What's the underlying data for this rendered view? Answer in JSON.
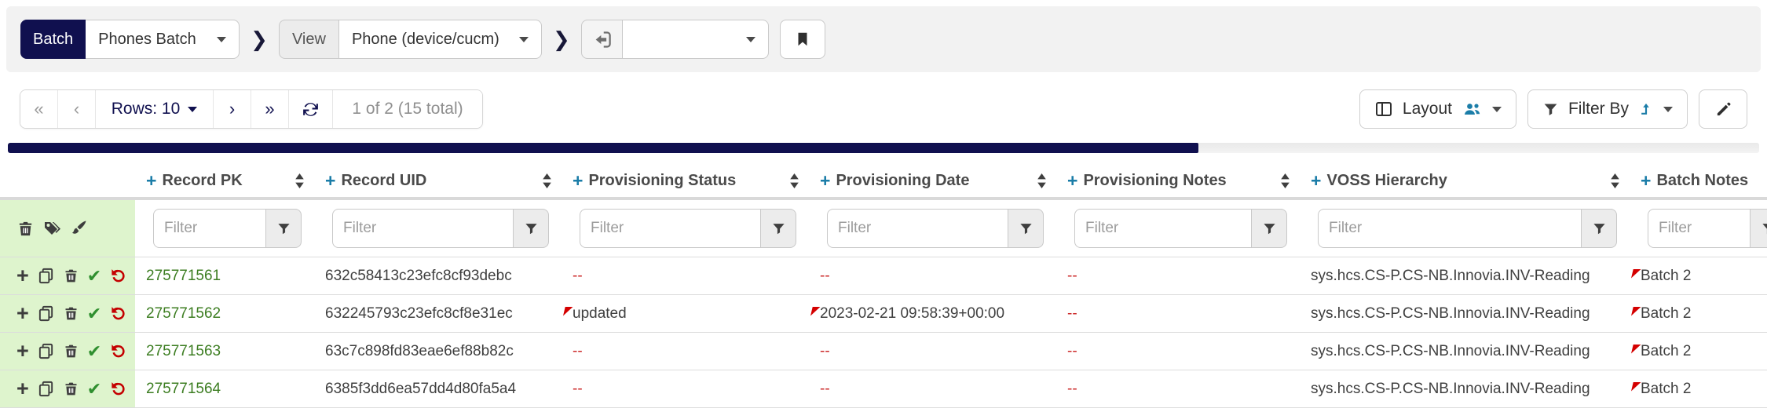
{
  "breadcrumb": {
    "batch_label": "Batch",
    "batch_value": "Phones Batch",
    "view_label": "View",
    "view_value": "Phone (device/cucm)",
    "quick_nav_value": ""
  },
  "icons": {
    "separator": "❯",
    "first": "«",
    "previous": "‹",
    "next": "›",
    "last": "»",
    "plus": "+",
    "check": "✔"
  },
  "toolbar": {
    "rows_label": "Rows: 10",
    "page_status": "1 of 2 (15 total)",
    "layout_label": "Layout",
    "filter_by_label": "Filter By"
  },
  "progress": {
    "percent": 68
  },
  "colors": {
    "navy": "#10104f",
    "teal": "#1b7da8",
    "record_pk_green": "#3c7d21",
    "empty_value_red": "#cc2b2b",
    "changed_flag_red": "#d40000",
    "action_cell_green": "#def4cd"
  },
  "table": {
    "filter_placeholder": "Filter",
    "columns": [
      {
        "label": "Record PK"
      },
      {
        "label": "Record UID"
      },
      {
        "label": "Provisioning Status"
      },
      {
        "label": "Provisioning Date"
      },
      {
        "label": "Provisioning Notes"
      },
      {
        "label": "VOSS Hierarchy"
      },
      {
        "label": "Batch Notes"
      }
    ],
    "rows": [
      {
        "record_pk": "275771561",
        "record_uid": "632c58413c23efc8cf93debc",
        "provisioning_status": "--",
        "provisioning_date": "--",
        "provisioning_notes": "--",
        "voss_hierarchy": "sys.hcs.CS-P.CS-NB.Innovia.INV-Reading",
        "batch_notes": "Batch 2",
        "changed": {
          "batch_notes": true
        }
      },
      {
        "record_pk": "275771562",
        "record_uid": "632245793c23efc8cf8e31ec",
        "provisioning_status": "updated",
        "provisioning_date": "2023-02-21 09:58:39+00:00",
        "provisioning_notes": "--",
        "voss_hierarchy": "sys.hcs.CS-P.CS-NB.Innovia.INV-Reading",
        "batch_notes": "Batch 2",
        "changed": {
          "provisioning_status": true,
          "provisioning_date": true,
          "batch_notes": true
        }
      },
      {
        "record_pk": "275771563",
        "record_uid": "63c7c898fd83eae6ef88b82c",
        "provisioning_status": "--",
        "provisioning_date": "--",
        "provisioning_notes": "--",
        "voss_hierarchy": "sys.hcs.CS-P.CS-NB.Innovia.INV-Reading",
        "batch_notes": "Batch 2",
        "changed": {
          "batch_notes": true
        }
      },
      {
        "record_pk": "275771564",
        "record_uid": "6385f3dd6ea57dd4d80fa5a4",
        "provisioning_status": "--",
        "provisioning_date": "--",
        "provisioning_notes": "--",
        "voss_hierarchy": "sys.hcs.CS-P.CS-NB.Innovia.INV-Reading",
        "batch_notes": "Batch 2",
        "changed": {
          "batch_notes": true
        }
      }
    ]
  }
}
